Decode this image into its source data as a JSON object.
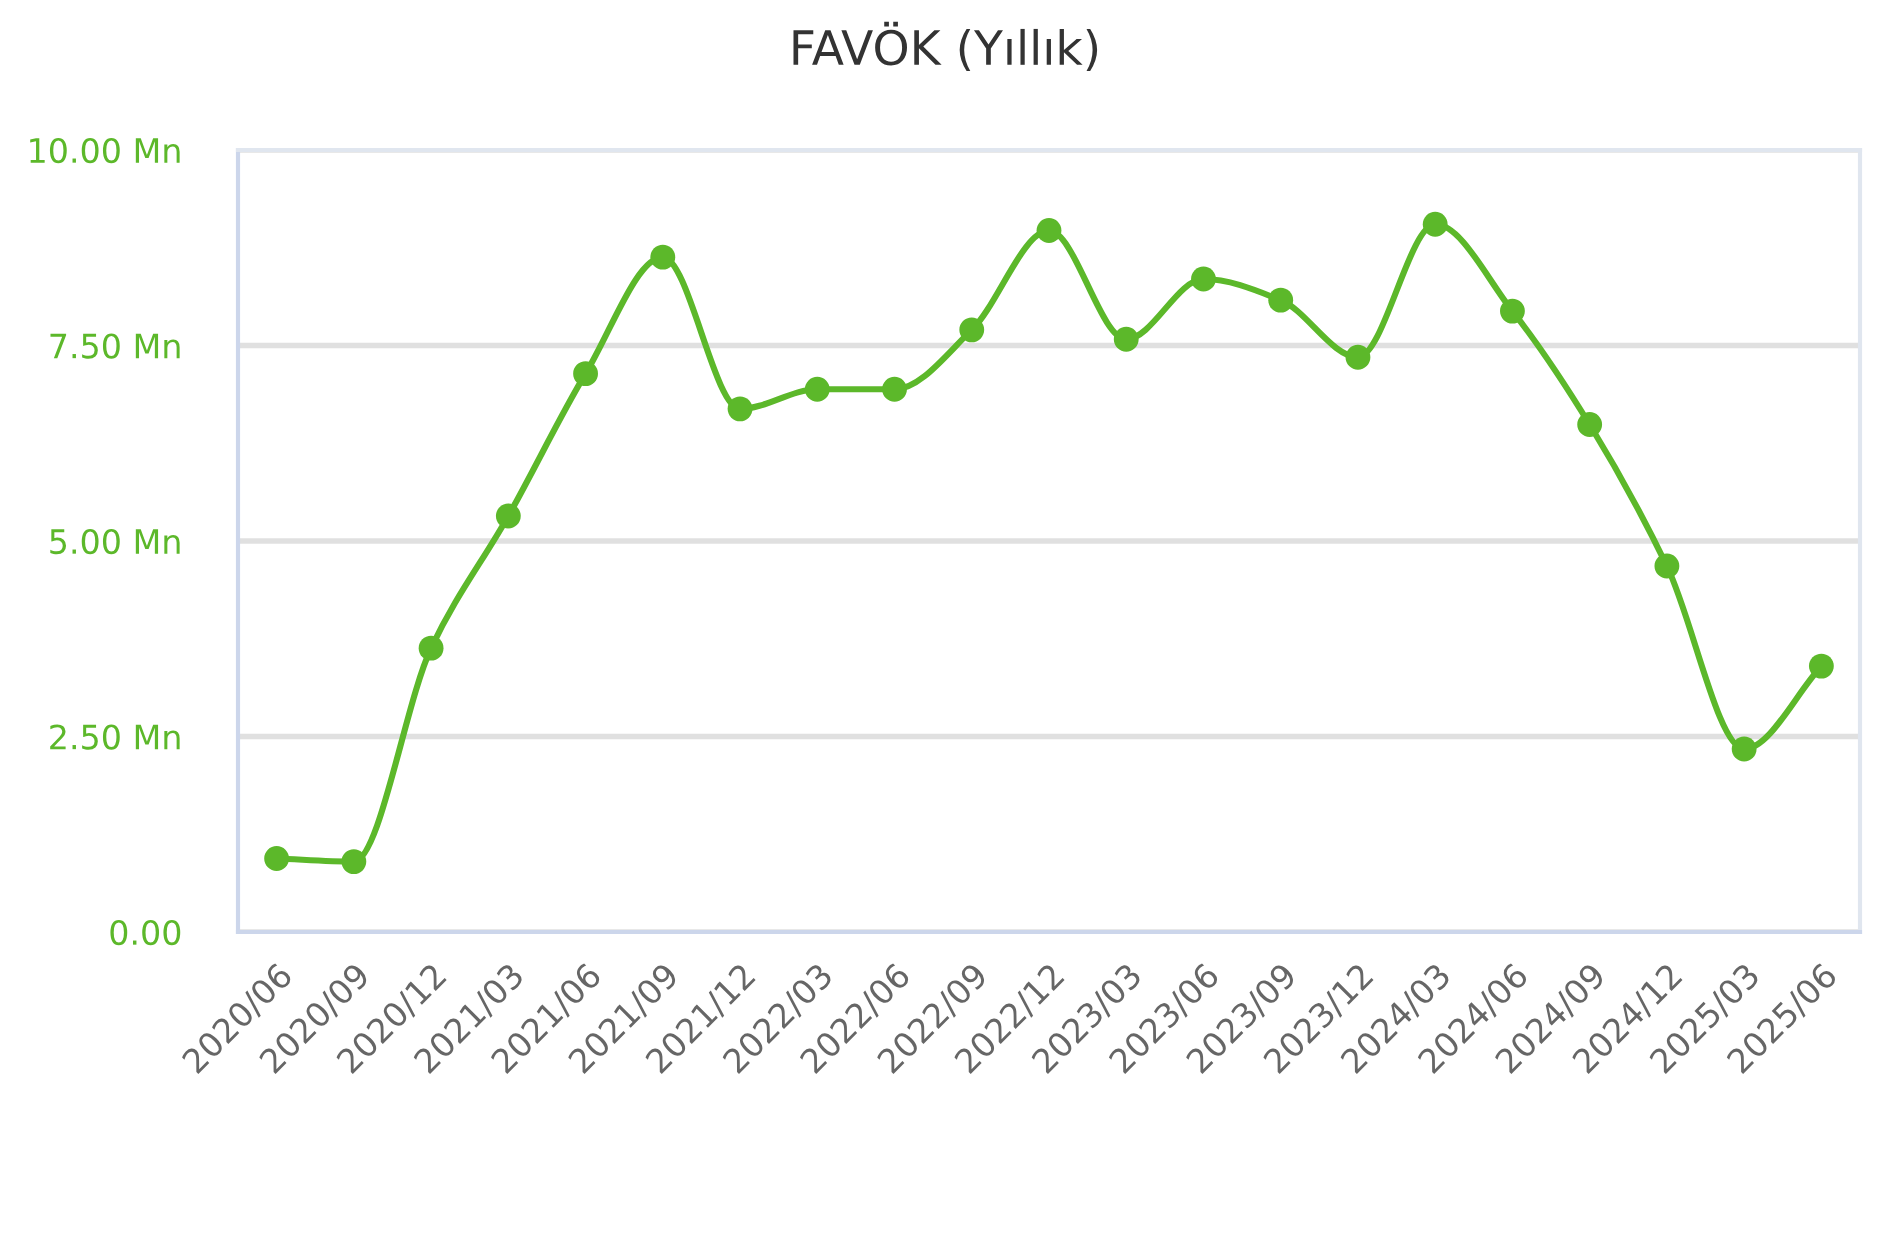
{
  "chart_data": {
    "type": "line",
    "title": "FAVÖK (Yıllık)",
    "categories": [
      "2020/06",
      "2020/09",
      "2020/12",
      "2021/03",
      "2021/06",
      "2021/09",
      "2021/12",
      "2022/03",
      "2022/06",
      "2022/09",
      "2022/12",
      "2023/03",
      "2023/06",
      "2023/09",
      "2023/12",
      "2024/03",
      "2024/06",
      "2024/09",
      "2024/12",
      "2025/03",
      "2025/06"
    ],
    "series": [
      {
        "color": "#5cb82a",
        "values": [
          0.94,
          0.9,
          3.63,
          5.32,
          7.14,
          8.63,
          6.69,
          6.94,
          6.94,
          7.7,
          8.97,
          7.58,
          8.35,
          8.08,
          7.35,
          9.05,
          7.94,
          6.49,
          4.68,
          2.34,
          3.4
        ]
      }
    ],
    "ylim": [
      0,
      10
    ],
    "yticks": [
      {
        "value": 0,
        "label": "0.00"
      },
      {
        "value": 2.5,
        "label": "2.50 Mn"
      },
      {
        "value": 5,
        "label": "5.00 Mn"
      },
      {
        "value": 7.5,
        "label": "7.50 Mn"
      },
      {
        "value": 10,
        "label": "10.00 Mn"
      }
    ],
    "grid": "y",
    "marker": "circle",
    "line_style": "solid"
  }
}
